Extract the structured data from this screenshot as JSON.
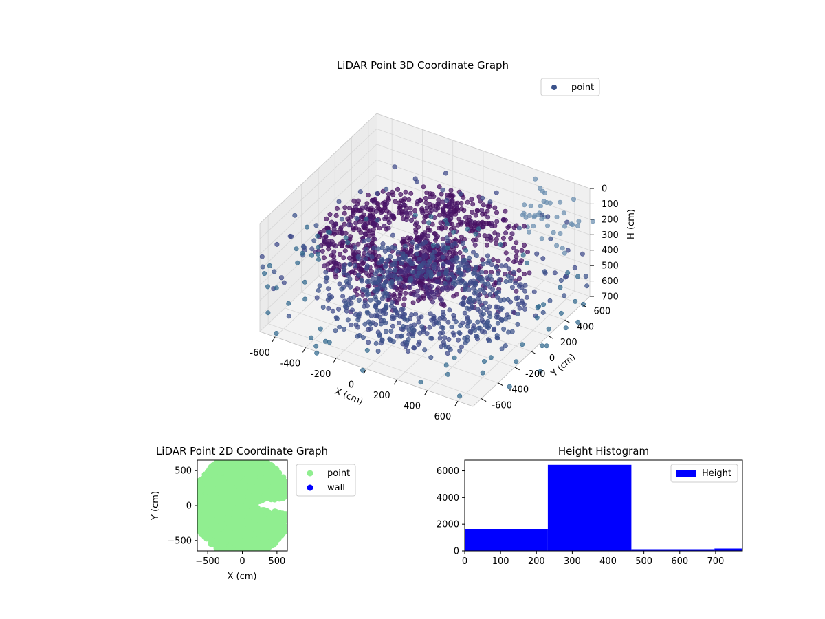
{
  "chart_data": [
    {
      "type": "scatter",
      "projection": "3d",
      "title": "LiDAR Point 3D Coordinate Graph",
      "xlabel": "X (cm)",
      "ylabel": "Y (cm)",
      "zlabel": "H (cm)",
      "xlim": [
        -700,
        700
      ],
      "ylim": [
        -700,
        700
      ],
      "zlim": [
        0,
        700
      ],
      "z_inverted": true,
      "xticks": [
        "-600",
        "-400",
        "-200",
        "0",
        "200",
        "400",
        "600"
      ],
      "yticks": [
        "-600",
        "-400",
        "-200",
        "0",
        "200",
        "400",
        "600"
      ],
      "zticks": [
        "0",
        "100",
        "200",
        "300",
        "400",
        "500",
        "600",
        "700"
      ],
      "grid": true,
      "legend": {
        "placement": "top-right",
        "entries": [
          "point"
        ]
      },
      "colormap": "viridis",
      "series": [
        {
          "name": "point",
          "color": "#3b528b",
          "description_points": [
            {
              "component": "upper ring",
              "r_range": [
                300,
                620
              ],
              "h_range": [
                200,
                300
              ]
            },
            {
              "component": "lower ring",
              "r_range": [
                200,
                600
              ],
              "h_range": [
                550,
                620
              ]
            },
            {
              "component": "central object",
              "x_range": [
                -100,
                200
              ],
              "y_range": [
                -200,
                200
              ],
              "h_range": [
                200,
                450
              ]
            },
            {
              "component": "outer scattered points",
              "r_range": [
                600,
                900
              ],
              "h_range": [
                0,
                700
              ]
            }
          ]
        }
      ]
    },
    {
      "type": "scatter",
      "title": "LiDAR Point 2D Coordinate Graph",
      "xlabel": "X (cm)",
      "ylabel": "Y (cm)",
      "xlim": [
        -650,
        650
      ],
      "ylim": [
        -650,
        650
      ],
      "xticks": [
        "−500",
        "0",
        "500"
      ],
      "yticks": [
        "500",
        "0",
        "−500"
      ],
      "grid": false,
      "legend": {
        "placement": "outside-right",
        "entries": [
          "point",
          "wall"
        ]
      },
      "series": [
        {
          "name": "point",
          "color": "#90ee90",
          "coverage": "dense disk of radius ~650 cm with notch along +X between y≈−60 and y≈+60 from x≈230 outward"
        },
        {
          "name": "wall",
          "color": "#0000ff",
          "values": []
        }
      ]
    },
    {
      "type": "bar",
      "subtype": "histogram",
      "title": "Height Histogram",
      "xlim": [
        0,
        775
      ],
      "ylim": [
        0,
        6800
      ],
      "xticks": [
        "0",
        "100",
        "200",
        "300",
        "400",
        "500",
        "600",
        "700"
      ],
      "yticks": [
        "0",
        "2000",
        "4000",
        "6000"
      ],
      "legend": {
        "placement": "top-right",
        "entries": [
          "Height"
        ]
      },
      "series": [
        {
          "name": "Height",
          "color": "#0000ff",
          "bins": [
            {
              "x0": 0,
              "x1": 232,
              "count": 1650
            },
            {
              "x0": 232,
              "x1": 465,
              "count": 6450
            },
            {
              "x0": 465,
              "x1": 697,
              "count": 130
            },
            {
              "x0": 697,
              "x1": 775,
              "count": 180
            }
          ]
        }
      ]
    }
  ]
}
